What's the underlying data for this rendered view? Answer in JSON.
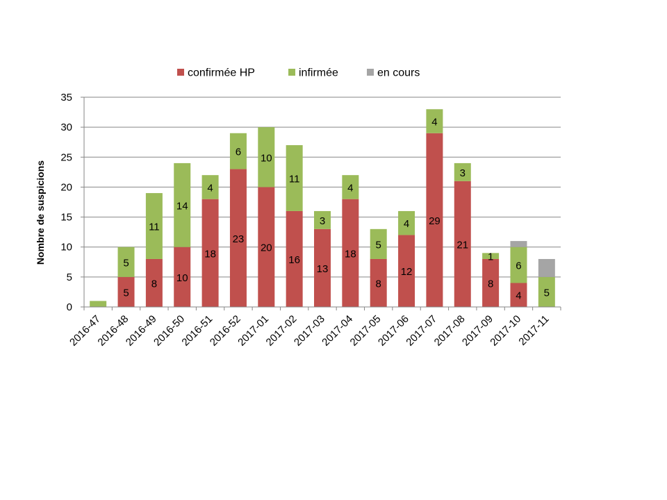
{
  "chart_data": {
    "type": "bar",
    "stacked": true,
    "title": "",
    "xlabel": "",
    "ylabel": "Nombre de suspicions",
    "ylim": [
      0,
      35
    ],
    "yticks": [
      0,
      5,
      10,
      15,
      20,
      25,
      30,
      35
    ],
    "grid": true,
    "legend_position": "top",
    "categories": [
      "2016-47",
      "2016-48",
      "2016-49",
      "2016-50",
      "2016-51",
      "2016-52",
      "2017-01",
      "2017-02",
      "2017-03",
      "2017-04",
      "2017-05",
      "2017-06",
      "2017-07",
      "2017-08",
      "2017-09",
      "2017-10",
      "2017-11"
    ],
    "series": [
      {
        "name": "confirmée HP",
        "color": "#C0504D",
        "values": [
          0,
          5,
          8,
          10,
          18,
          23,
          20,
          16,
          13,
          18,
          8,
          12,
          29,
          21,
          8,
          4,
          0
        ]
      },
      {
        "name": "infirmée",
        "color": "#9BBB59",
        "values": [
          1,
          5,
          11,
          14,
          4,
          6,
          10,
          11,
          3,
          4,
          5,
          4,
          4,
          3,
          1,
          6,
          5
        ]
      },
      {
        "name": "en cours",
        "color": "#A5A5A5",
        "values": [
          0,
          0,
          0,
          0,
          0,
          0,
          0,
          0,
          0,
          0,
          0,
          0,
          0,
          0,
          0,
          1,
          3
        ]
      }
    ],
    "labels": {
      "confirmée HP": [
        "",
        "5",
        "8",
        "10",
        "18",
        "23",
        "20",
        "16",
        "13",
        "18",
        "8",
        "12",
        "29",
        "21",
        "8",
        "4",
        ""
      ],
      "infirmée": [
        "",
        "5",
        "11",
        "14",
        "4",
        "6",
        "10",
        "11",
        "3",
        "4",
        "5",
        "4",
        "4",
        "3",
        "1",
        "6",
        "5"
      ],
      "en cours": [
        "",
        "",
        "",
        "",
        "",
        "",
        "",
        "",
        "",
        "",
        "",
        "",
        "",
        "",
        "",
        "",
        ""
      ]
    }
  }
}
